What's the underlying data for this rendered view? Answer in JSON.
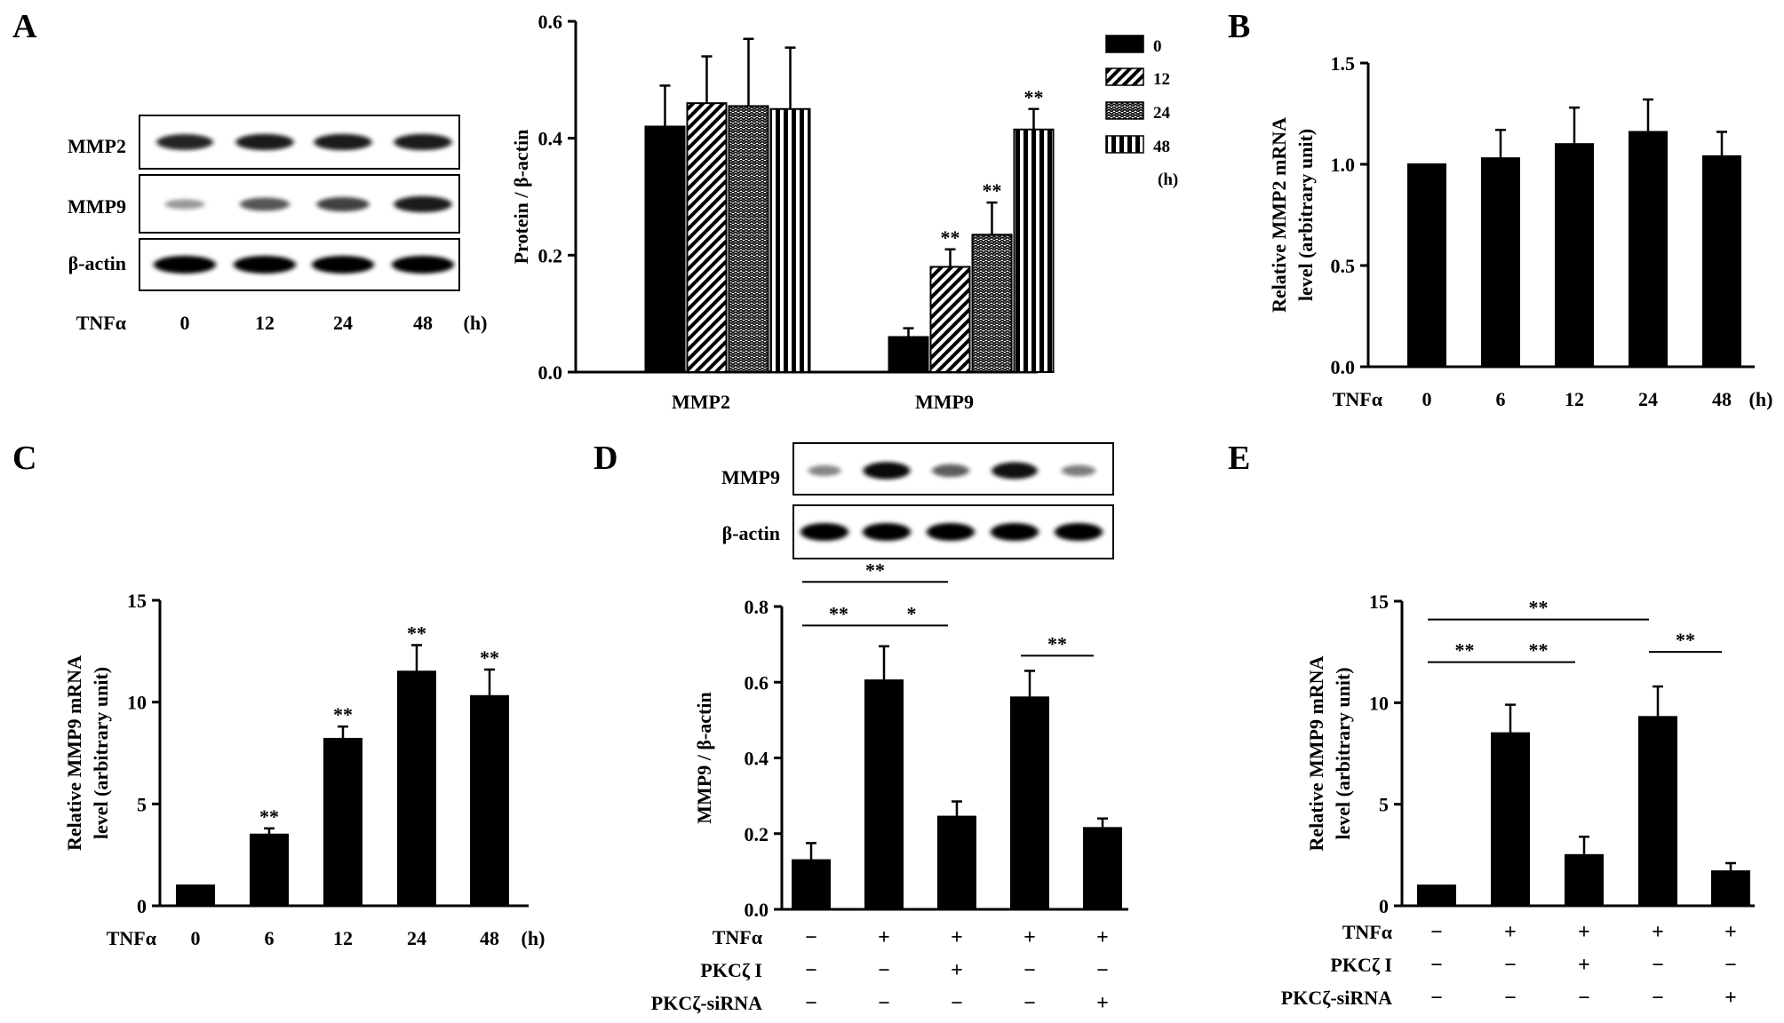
{
  "panels": {
    "A": {
      "letter": "A",
      "blot": {
        "rows": [
          "MMP2",
          "MMP9",
          "β-actin"
        ],
        "axis_label": "TNFα",
        "lanes": [
          "0",
          "12",
          "24",
          "48"
        ],
        "unit": "(h)",
        "intensities": [
          [
            0.8,
            0.85,
            0.85,
            0.85
          ],
          [
            0.2,
            0.55,
            0.65,
            0.85
          ],
          [
            1,
            1,
            1,
            1
          ]
        ]
      }
    },
    "B": {
      "letter": "B"
    },
    "C": {
      "letter": "C"
    },
    "D": {
      "letter": "D",
      "blot": {
        "rows": [
          "MMP9",
          "β-actin"
        ],
        "intensities": [
          [
            0.3,
            0.95,
            0.5,
            0.9,
            0.35
          ],
          [
            1,
            1,
            1,
            1,
            1
          ]
        ]
      }
    },
    "E": {
      "letter": "E"
    }
  },
  "chart_data": [
    {
      "id": "A-bar",
      "type": "bar",
      "title": "",
      "xlabel": "",
      "ylabel": "Protein / β-actin",
      "ylim": [
        0,
        0.6
      ],
      "yticks": [
        "0.0",
        "0.2",
        "0.4",
        "0.6"
      ],
      "categories": [
        "MMP2",
        "MMP9"
      ],
      "series": [
        {
          "name": "0",
          "values": [
            0.42,
            0.06
          ],
          "errors": [
            0.07,
            0.015
          ],
          "sig": [
            "",
            ""
          ]
        },
        {
          "name": "12",
          "values": [
            0.46,
            0.18
          ],
          "errors": [
            0.08,
            0.03
          ],
          "sig": [
            "",
            "**"
          ]
        },
        {
          "name": "24",
          "values": [
            0.455,
            0.235
          ],
          "errors": [
            0.115,
            0.055
          ],
          "sig": [
            "",
            "**"
          ]
        },
        {
          "name": "48",
          "values": [
            0.45,
            0.415
          ],
          "errors": [
            0.105,
            0.035
          ],
          "sig": [
            "",
            "**"
          ]
        }
      ],
      "legend_unit": "(h)",
      "legend_position": "top-right",
      "grid": false
    },
    {
      "id": "B",
      "type": "bar",
      "title": "",
      "ylabel": [
        "Relative MMP2 mRNA",
        "level  (arbitrary unit)"
      ],
      "ylim": [
        0,
        1.5
      ],
      "yticks": [
        "0.0",
        "0.5",
        "1.0",
        "1.5"
      ],
      "x_axis_label": "TNFα",
      "categories": [
        "0",
        "6",
        "12",
        "24",
        "48"
      ],
      "unit": "(h)",
      "values": [
        1.0,
        1.03,
        1.1,
        1.16,
        1.04
      ],
      "errors": [
        0,
        0.14,
        0.18,
        0.16,
        0.12
      ],
      "sig": [
        "",
        "",
        "",
        "",
        ""
      ],
      "grid": false
    },
    {
      "id": "C",
      "type": "bar",
      "title": "",
      "ylabel": [
        "Relative MMP9 mRNA",
        "level  (arbitrary unit)"
      ],
      "ylim": [
        0,
        15
      ],
      "yticks": [
        "0",
        "5",
        "10",
        "15"
      ],
      "x_axis_label": "TNFα",
      "categories": [
        "0",
        "6",
        "12",
        "24",
        "48"
      ],
      "unit": "(h)",
      "values": [
        1.0,
        3.5,
        8.2,
        11.5,
        10.3
      ],
      "errors": [
        0,
        0.3,
        0.6,
        1.3,
        1.3
      ],
      "sig": [
        "",
        "**",
        "**",
        "**",
        "**"
      ],
      "grid": false
    },
    {
      "id": "D-bar",
      "type": "bar",
      "title": "",
      "ylabel": "MMP9 / β-actin",
      "ylim": [
        0,
        0.8
      ],
      "yticks": [
        "0.0",
        "0.2",
        "0.4",
        "0.6",
        "0.8"
      ],
      "values": [
        0.13,
        0.605,
        0.245,
        0.56,
        0.215
      ],
      "errors": [
        0.045,
        0.09,
        0.04,
        0.07,
        0.025
      ],
      "condition_rows": [
        {
          "label": "TNFα",
          "marks": [
            "−",
            "+",
            "+",
            "+",
            "+"
          ]
        },
        {
          "label": "PKCζ I",
          "marks": [
            "−",
            "−",
            "+",
            "−",
            "−"
          ]
        },
        {
          "label": "PKCζ-siRNA",
          "marks": [
            "−",
            "−",
            "−",
            "−",
            "+"
          ]
        }
      ],
      "brackets": [
        {
          "from": 0,
          "to": 2,
          "label": "**",
          "level": 0.865
        },
        {
          "from": 0,
          "to": 1,
          "label": "**",
          "level": 0.75
        },
        {
          "from": 1,
          "to": 2,
          "label": "*",
          "level": 0.75
        },
        {
          "from": 3,
          "to": 4,
          "label": "**",
          "level": 0.67
        }
      ],
      "grid": false
    },
    {
      "id": "E",
      "type": "bar",
      "title": "",
      "ylabel": [
        "Relative MMP9 mRNA",
        "level  (arbitrary unit)"
      ],
      "ylim": [
        0,
        15
      ],
      "yticks": [
        "0",
        "5",
        "10",
        "15"
      ],
      "values": [
        1.0,
        8.5,
        2.5,
        9.3,
        1.7
      ],
      "errors": [
        0,
        1.4,
        0.9,
        1.5,
        0.4
      ],
      "condition_rows": [
        {
          "label": "TNFα",
          "marks": [
            "−",
            "+",
            "+",
            "+",
            "+"
          ]
        },
        {
          "label": "PKCζ I",
          "marks": [
            "−",
            "−",
            "+",
            "−",
            "−"
          ]
        },
        {
          "label": "PKCζ-siRNA",
          "marks": [
            "−",
            "−",
            "−",
            "−",
            "+"
          ]
        }
      ],
      "brackets": [
        {
          "from": 0,
          "to": 3,
          "label": "**",
          "level": 14.1
        },
        {
          "from": 0,
          "to": 1,
          "label": "**",
          "level": 12.0
        },
        {
          "from": 1,
          "to": 2,
          "label": "**",
          "level": 12.0
        },
        {
          "from": 3,
          "to": 4,
          "label": "**",
          "level": 12.5
        }
      ],
      "grid": false
    }
  ]
}
